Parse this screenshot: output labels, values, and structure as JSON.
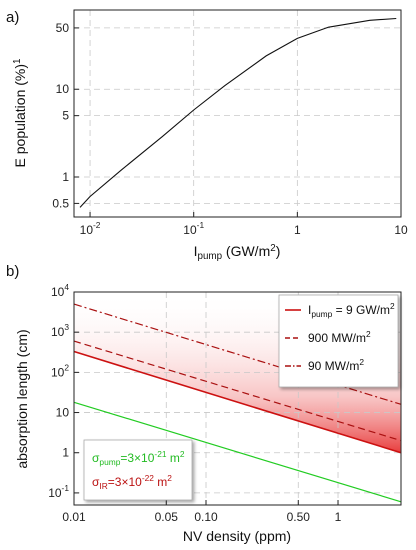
{
  "chart_data": [
    {
      "panel_label": "a)",
      "type": "line",
      "xscale": "log",
      "yscale": "log",
      "xlim": [
        0.007,
        10
      ],
      "ylim": [
        0.35,
        80
      ],
      "xticks": [
        0.01,
        0.1,
        1,
        10
      ],
      "xtick_labels": [
        {
          "base": "10",
          "exp": "-2"
        },
        {
          "base": "10",
          "exp": "-1"
        },
        {
          "base": "1",
          "exp": ""
        },
        {
          "base": "10",
          "exp": ""
        }
      ],
      "yticks": [
        0.5,
        1,
        5,
        10,
        50
      ],
      "ytick_labels": [
        "0.5",
        "1",
        "5",
        "10",
        "50"
      ],
      "xlabel": {
        "pre": "I",
        "sub": "pump",
        "post": " (GW/m",
        "sup": "2",
        "end": ")"
      },
      "ylabel": {
        "sup": "1",
        "post": "E population (%)"
      },
      "grid": true,
      "series": [
        {
          "color": "#111111",
          "x": [
            0.008,
            0.01,
            0.02,
            0.05,
            0.1,
            0.2,
            0.5,
            1,
            2,
            5,
            9
          ],
          "y": [
            0.45,
            0.6,
            1.2,
            2.9,
            5.8,
            11,
            24,
            38,
            51,
            61,
            64
          ]
        }
      ]
    },
    {
      "panel_label": "b)",
      "type": "line",
      "xscale": "log",
      "yscale": "log",
      "xlim": [
        0.01,
        3
      ],
      "ylim": [
        0.05,
        10000
      ],
      "xticks": [
        0.01,
        0.05,
        0.1,
        0.5,
        1
      ],
      "xtick_labels": [
        "0.01",
        "0.05",
        "0.10",
        "0.50",
        "1"
      ],
      "yticks": [
        0.1,
        1,
        10,
        100,
        1000,
        10000
      ],
      "ytick_labels": [
        {
          "base": "10",
          "exp": "-1"
        },
        {
          "base": "1",
          "exp": ""
        },
        {
          "base": "10",
          "exp": ""
        },
        {
          "base": "10",
          "exp": "2"
        },
        {
          "base": "10",
          "exp": "3"
        },
        {
          "base": "10",
          "exp": "4"
        }
      ],
      "xlabel": "NV density (ppm)",
      "ylabel": "absorption length (cm)",
      "grid": true,
      "series": [
        {
          "label": {
            "pre": "I",
            "sub": "pump",
            "post": " = 9 GW/m",
            "sup": "2"
          },
          "color": "#cc1111",
          "dash": "solid",
          "x": [
            0.01,
            3
          ],
          "y": [
            330,
            1.0
          ]
        },
        {
          "label": {
            "pre": "900 MW/m",
            "sub": "",
            "post": "",
            "sup": "2"
          },
          "color": "#aa1111",
          "dash": "dash",
          "x": [
            0.01,
            3
          ],
          "y": [
            600,
            2.0
          ]
        },
        {
          "label": {
            "pre": "90 MW/m",
            "sub": "",
            "post": "",
            "sup": "2"
          },
          "color": "#aa1111",
          "dash": "dashdot",
          "x": [
            0.01,
            3
          ],
          "y": [
            5000,
            16
          ]
        },
        {
          "color": "#22cc22",
          "dash": "solid",
          "x": [
            0.01,
            3
          ],
          "y": [
            18,
            0.06
          ]
        }
      ],
      "legend_position": "top-right",
      "annotations": [
        {
          "pre": "σ",
          "sub": "pump",
          "post": "=3×10",
          "sup": "-21",
          "end": " m",
          "sup2": "2",
          "color": "#22bb22"
        },
        {
          "pre": "σ",
          "sub": "IR",
          "post": "=3×10",
          "sup": "-22",
          "end": " m",
          "sup2": "2",
          "color": "#bb1111"
        }
      ]
    }
  ]
}
